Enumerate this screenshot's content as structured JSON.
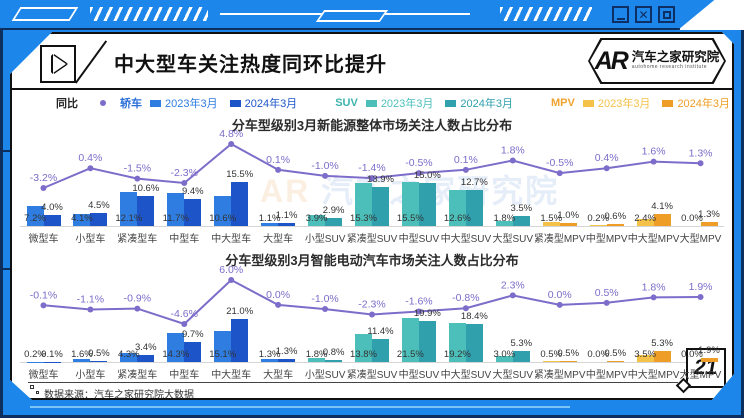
{
  "window": {
    "minimize": "minimize",
    "close": "close",
    "maximize": "maximize"
  },
  "header": {
    "title": "中大型车关注热度同环比提升",
    "logo": {
      "monogram": "AR",
      "name": "汽车之家研究院",
      "subtitle": "autohome research institute"
    }
  },
  "legend": {
    "line_label": "同比",
    "line_color": "#7d6cc9",
    "groups": [
      {
        "name": "轿车",
        "color": "#2b6fd8",
        "items": [
          {
            "label": "2023年3月"
          },
          {
            "label": "2024年3月"
          }
        ]
      },
      {
        "name": "SUV",
        "color": "#3cb3ae",
        "items": [
          {
            "label": "2023年3月"
          },
          {
            "label": "2024年3月"
          }
        ]
      },
      {
        "name": "MPV",
        "color": "#efa22e",
        "items": [
          {
            "label": "2023年3月"
          },
          {
            "label": "2024年3月"
          }
        ]
      }
    ]
  },
  "palette": {
    "sedan": [
      "#2f7de1",
      "#1d55c9"
    ],
    "suv": [
      "#4cbfba",
      "#2fa0ac"
    ],
    "mpv": [
      "#f4c149",
      "#ee9d26"
    ]
  },
  "category_groups": [
    "sedan",
    "sedan",
    "sedan",
    "sedan",
    "sedan",
    "sedan",
    "suv",
    "suv",
    "suv",
    "suv",
    "suv",
    "mpv",
    "mpv",
    "mpv",
    "mpv"
  ],
  "chart_data": [
    {
      "type": "bar",
      "title": "分车型级别3月新能源整体市场关注人数占比分布",
      "unit": "%",
      "categories": [
        "微型车",
        "小型车",
        "紧凑型车",
        "中型车",
        "中大型车",
        "大型车",
        "小型SUV",
        "紧凑型SUV",
        "中型SUV",
        "中大型SUV",
        "大型SUV",
        "紧凑型MPV",
        "中型MPV",
        "中大型MPV",
        "大型MPV"
      ],
      "series": [
        {
          "name": "2023年3月",
          "values": [
            7.2,
            4.1,
            12.1,
            11.7,
            10.6,
            1.1,
            3.9,
            15.3,
            15.5,
            12.6,
            1.8,
            1.5,
            0.2,
            2.4,
            0.0
          ]
        },
        {
          "name": "2024年3月",
          "values": [
            4.0,
            4.5,
            10.6,
            9.4,
            15.5,
            1.1,
            2.9,
            13.9,
            15.0,
            12.7,
            3.5,
            1.0,
            0.6,
            4.1,
            1.3
          ]
        }
      ],
      "line": {
        "name": "同比",
        "values": [
          -3.2,
          0.4,
          -1.5,
          -2.3,
          4.8,
          0.1,
          -1.0,
          -1.4,
          -0.5,
          0.1,
          1.8,
          -0.5,
          0.4,
          1.6,
          1.3
        ]
      }
    },
    {
      "type": "bar",
      "title": "分车型级别3月智能电动汽车市场关注人数占比分布",
      "unit": "%",
      "categories": [
        "微型车",
        "小型车",
        "紧凑型车",
        "中型车",
        "中大型车",
        "大型车",
        "小型SUV",
        "紧凑型SUV",
        "中型SUV",
        "中大型SUV",
        "大型SUV",
        "紧凑型MPV",
        "中型MPV",
        "中大型MPV",
        "大型MPV"
      ],
      "series": [
        {
          "name": "2023年3月",
          "values": [
            0.2,
            1.6,
            4.3,
            14.3,
            15.1,
            1.3,
            1.8,
            13.8,
            21.5,
            19.2,
            3.0,
            0.5,
            0.0,
            3.5,
            0.0
          ]
        },
        {
          "name": "2024年3月",
          "values": [
            0.1,
            0.5,
            3.4,
            9.7,
            21.0,
            1.3,
            0.8,
            11.4,
            19.9,
            18.4,
            5.3,
            0.5,
            0.5,
            5.3,
            1.9
          ]
        }
      ],
      "line": {
        "name": "同比",
        "values": [
          -0.1,
          -1.1,
          -0.9,
          -4.6,
          6.0,
          0.0,
          -1.0,
          -2.3,
          -1.6,
          -0.8,
          2.3,
          0.0,
          0.5,
          1.8,
          1.9
        ]
      }
    }
  ],
  "watermark": {
    "monogram": "AR",
    "text": "汽车之家研究院"
  },
  "footer": {
    "source": "数据来源：汽车之家研究院大数据",
    "page": "21"
  }
}
